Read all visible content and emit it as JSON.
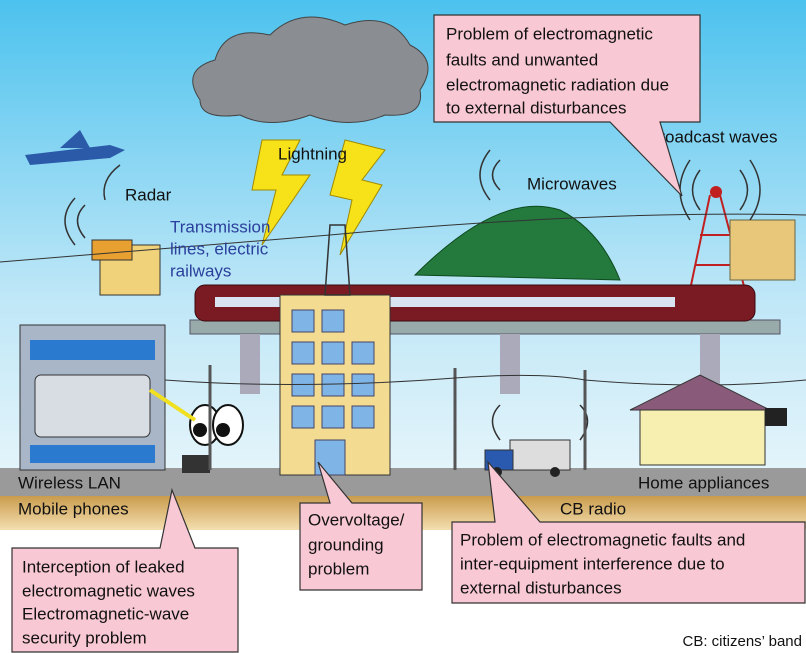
{
  "labels": {
    "radar": "Radar",
    "lightning": "Lightning",
    "transmission": [
      "Transmission",
      "lines, electric",
      "railways"
    ],
    "microwaves": "Microwaves",
    "broadcast": "Broadcast waves",
    "wireless_lan": "Wireless LAN",
    "mobile_phones": "Mobile phones",
    "cb_radio": "CB radio",
    "home_appliances": "Home appliances"
  },
  "callouts": {
    "external_radiation": [
      "Problem of electromagnetic",
      "faults and unwanted",
      "electromagnetic radiation due",
      "to external disturbances"
    ],
    "overvoltage": [
      "Overvoltage/",
      "grounding",
      "problem"
    ],
    "interference": [
      "Problem of electromagnetic faults and",
      "inter-equipment interference due to",
      "external disturbances"
    ],
    "leaked": [
      "Interception of leaked",
      "electromagnetic waves",
      "Electromagnetic-wave",
      "security problem"
    ]
  },
  "footnote": "CB: citizens’ band"
}
